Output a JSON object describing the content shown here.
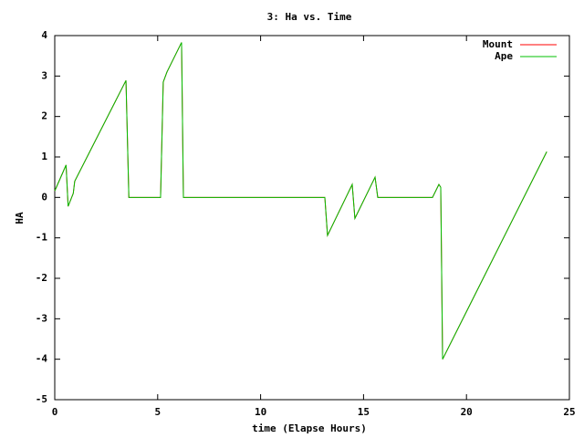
{
  "chart_data": {
    "type": "line",
    "title": "3: Ha vs. Time",
    "x_label": "time (Elapse Hours)",
    "y_label": "HA",
    "x": [
      0,
      0.55,
      0.65,
      0.9,
      0.97,
      3.46,
      3.6,
      5.14,
      5.27,
      5.45,
      6.16,
      6.25,
      13.12,
      13.25,
      14.45,
      14.58,
      15.56,
      15.69,
      18.35,
      18.66,
      18.75,
      18.84,
      23.9
    ],
    "series": [
      {
        "name": "Mount",
        "color": "#ff0000",
        "values": [
          0.16,
          0.8,
          -0.22,
          0.1,
          0.4,
          2.89,
          0,
          0,
          2.85,
          3.1,
          3.83,
          0,
          0,
          -0.94,
          0.32,
          -0.52,
          0.5,
          0,
          0,
          0.32,
          0.25,
          -4.0,
          1.13
        ]
      },
      {
        "name": "Ape",
        "color": "#00c000",
        "values": [
          0.16,
          0.8,
          -0.22,
          0.1,
          0.4,
          2.89,
          0,
          0,
          2.85,
          3.1,
          3.83,
          0,
          0,
          -0.94,
          0.32,
          -0.52,
          0.5,
          0,
          0,
          0.32,
          0.25,
          -4.0,
          1.13
        ]
      }
    ],
    "xlim": [
      0,
      25
    ],
    "xticks": [
      0,
      5,
      10,
      15,
      20,
      25
    ],
    "ylim": [
      -5,
      4
    ],
    "yticks": [
      -5,
      -4,
      -3,
      -2,
      -1,
      0,
      1,
      2,
      3,
      4
    ],
    "legend": "top-right",
    "grid": false
  }
}
